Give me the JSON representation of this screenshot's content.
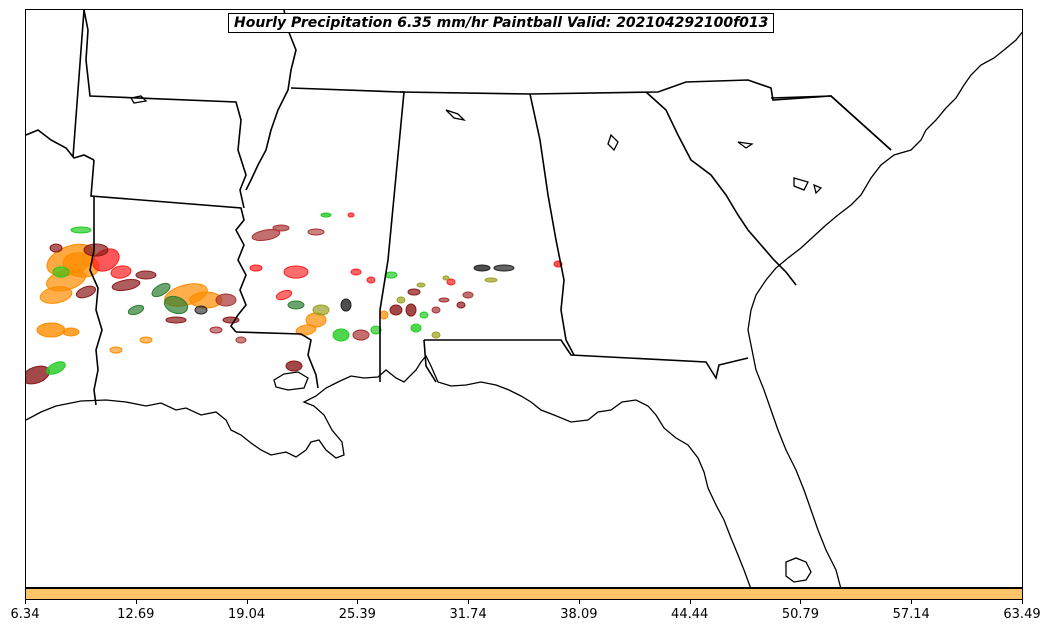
{
  "title": "Hourly Precipitation 6.35 mm/hr Paintball Valid: 202104292100f013",
  "colorbar": {
    "color": "#fec46a",
    "ticks": [
      "6.34",
      "12.69",
      "19.04",
      "25.39",
      "31.74",
      "38.09",
      "44.44",
      "50.79",
      "57.14",
      "63.49"
    ]
  },
  "paintball_colors": [
    "#8b1a1a",
    "#ff8c00",
    "#ff2020",
    "#22cc22",
    "#2e7d32",
    "#222222",
    "#9aa020",
    "#a83232"
  ]
}
